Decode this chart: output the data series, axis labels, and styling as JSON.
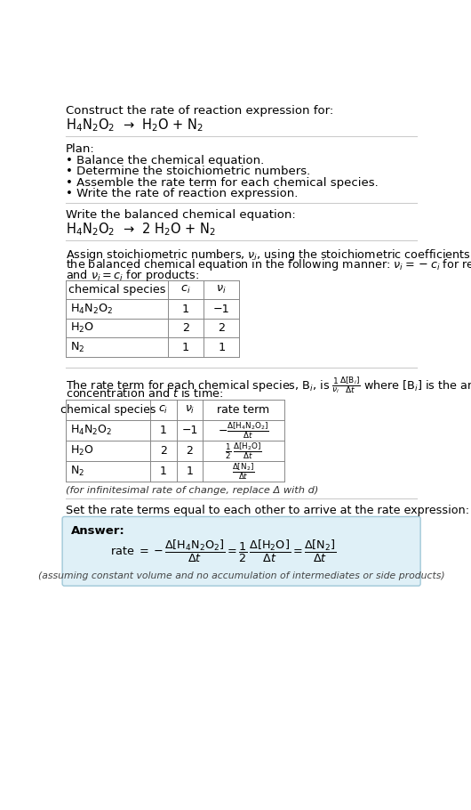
{
  "title_text": "Construct the rate of reaction expression for:",
  "reaction_unbalanced": "H$_4$N$_2$O$_2$  →  H$_2$O + N$_2$",
  "plan_header": "Plan:",
  "plan_steps": [
    "• Balance the chemical equation.",
    "• Determine the stoichiometric numbers.",
    "• Assemble the rate term for each chemical species.",
    "• Write the rate of reaction expression."
  ],
  "balanced_header": "Write the balanced chemical equation:",
  "reaction_balanced": "H$_4$N$_2$O$_2$  →  2 H$_2$O + N$_2$",
  "stoich_intro_1": "Assign stoichiometric numbers, $\\nu_i$, using the stoichiometric coefficients, $c_i$, from",
  "stoich_intro_2": "the balanced chemical equation in the following manner: $\\nu_i = -c_i$ for reactants",
  "stoich_intro_3": "and $\\nu_i = c_i$ for products:",
  "table1_headers": [
    "chemical species",
    "$c_i$",
    "$\\nu_i$"
  ],
  "table1_rows": [
    [
      "H$_4$N$_2$O$_2$",
      "1",
      "−1"
    ],
    [
      "H$_2$O",
      "2",
      "2"
    ],
    [
      "N$_2$",
      "1",
      "1"
    ]
  ],
  "rate_intro_1": "The rate term for each chemical species, B$_i$, is $\\frac{1}{\\nu_i}\\frac{\\Delta[\\mathrm{B}_i]}{\\Delta t}$ where [B$_i$] is the amount",
  "rate_intro_2": "concentration and $t$ is time:",
  "table2_headers": [
    "chemical species",
    "$c_i$",
    "$\\nu_i$",
    "rate term"
  ],
  "table2_rows": [
    [
      "H$_4$N$_2$O$_2$",
      "1",
      "−1",
      "$-\\frac{\\Delta[\\mathrm{H_4N_2O_2}]}{\\Delta t}$"
    ],
    [
      "H$_2$O",
      "2",
      "2",
      "$\\frac{1}{2}\\,\\frac{\\Delta[\\mathrm{H_2O}]}{\\Delta t}$"
    ],
    [
      "N$_2$",
      "1",
      "1",
      "$\\frac{\\Delta[\\mathrm{N_2}]}{\\Delta t}$"
    ]
  ],
  "infinitesimal_note": "(for infinitesimal rate of change, replace Δ with d)",
  "set_equal_text": "Set the rate terms equal to each other to arrive at the rate expression:",
  "answer_label": "Answer:",
  "answer_note": "(assuming constant volume and no accumulation of intermediates or side products)",
  "bg_color": "#ffffff",
  "answer_box_color": "#dff0f7",
  "answer_box_border": "#a0c8d8",
  "text_color": "#000000",
  "sep_line_color": "#cccccc"
}
